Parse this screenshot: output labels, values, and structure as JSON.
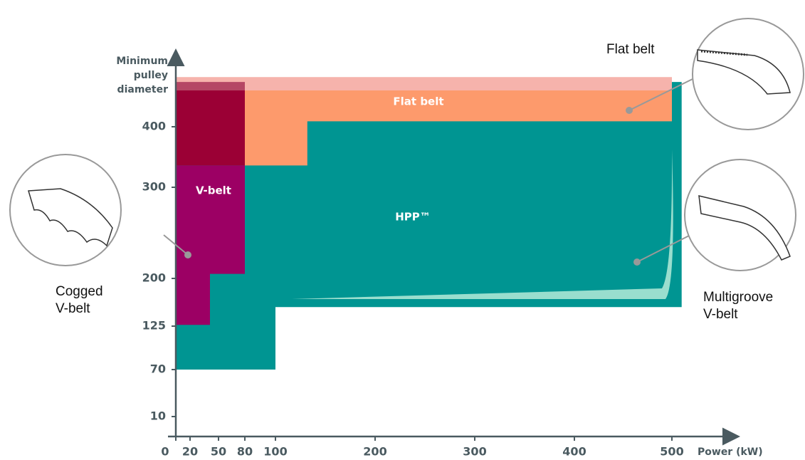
{
  "chart_data": {
    "type": "region",
    "x_label": "Power (kW)",
    "y_label": [
      "Minimum",
      "pulley",
      "diameter"
    ],
    "xticks": [
      0,
      20,
      50,
      80,
      100,
      200,
      300,
      400,
      500
    ],
    "yticks": [
      10,
      70,
      125,
      200,
      300,
      400
    ],
    "series": [
      {
        "name": "HPP™",
        "color": "#009592",
        "x": [
          0,
          100,
          100,
          510,
          510,
          0
        ],
        "values": [
          70,
          70,
          155,
          155,
          474,
          474
        ]
      },
      {
        "name": "Flat belt",
        "color": "#fd9a6c",
        "x": [
          80,
          500,
          500,
          132,
          132,
          80
        ],
        "values": [
          460,
          460,
          409,
          409,
          336,
          336
        ]
      },
      {
        "color": "#f6b3ac",
        "x": [
          0,
          500,
          500,
          0
        ],
        "values": [
          482,
          482,
          460,
          460
        ]
      },
      {
        "color": "#9b0035",
        "x": [
          0,
          80,
          80,
          0
        ],
        "values": [
          460,
          460,
          336,
          336
        ]
      },
      {
        "color": "#b54765",
        "x": [
          0,
          80,
          80,
          0
        ],
        "values": [
          474,
          474,
          460,
          460
        ]
      },
      {
        "name": "V-belt",
        "color": "#9c0064",
        "x": [
          0,
          80,
          80,
          41,
          41,
          0
        ],
        "values": [
          336,
          336,
          205,
          205,
          127,
          127
        ]
      }
    ],
    "callouts": [
      {
        "lines": [
          "Flat belt"
        ]
      },
      {
        "lines": [
          "Cogged",
          "V-belt"
        ]
      },
      {
        "lines": [
          "Multigroove",
          "V-belt"
        ]
      }
    ]
  }
}
